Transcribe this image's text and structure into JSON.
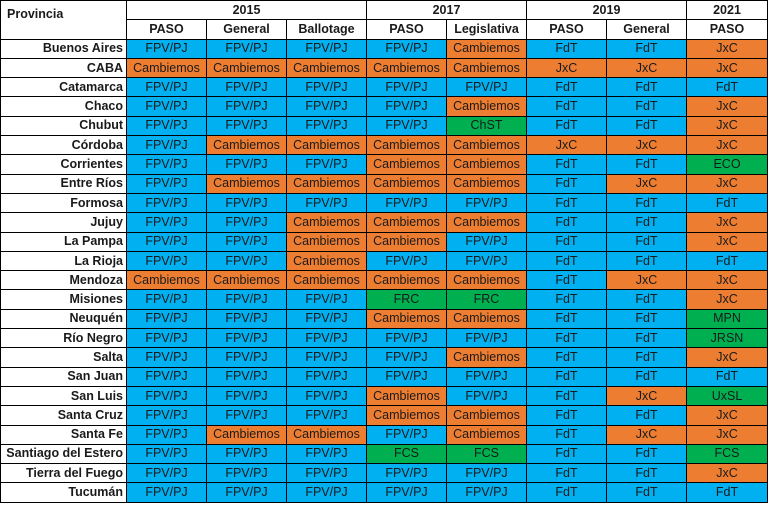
{
  "header": {
    "provincia": "Provincia",
    "years": [
      {
        "label": "2015",
        "span": 3
      },
      {
        "label": "2017",
        "span": 2
      },
      {
        "label": "2019",
        "span": 2
      },
      {
        "label": "2021",
        "span": 1
      }
    ],
    "elections": [
      "PASO",
      "General",
      "Ballotage",
      "PASO",
      "Legislativa",
      "PASO",
      "General",
      "PASO"
    ]
  },
  "colors": {
    "FPV/PJ": "#00b0f0",
    "FdT": "#00b0f0",
    "Cambiemos": "#ed7d31",
    "JxC": "#ed7d31",
    "other": "#00b050"
  },
  "rows": [
    {
      "provincia": "Buenos Aires",
      "results": [
        "FPV/PJ",
        "FPV/PJ",
        "FPV/PJ",
        "FPV/PJ",
        "Cambiemos",
        "FdT",
        "FdT",
        "JxC"
      ]
    },
    {
      "provincia": "CABA",
      "results": [
        "Cambiemos",
        "Cambiemos",
        "Cambiemos",
        "Cambiemos",
        "Cambiemos",
        "JxC",
        "JxC",
        "JxC"
      ]
    },
    {
      "provincia": "Catamarca",
      "results": [
        "FPV/PJ",
        "FPV/PJ",
        "FPV/PJ",
        "FPV/PJ",
        "FPV/PJ",
        "FdT",
        "FdT",
        "FdT"
      ]
    },
    {
      "provincia": "Chaco",
      "results": [
        "FPV/PJ",
        "FPV/PJ",
        "FPV/PJ",
        "FPV/PJ",
        "Cambiemos",
        "FdT",
        "FdT",
        "JxC"
      ]
    },
    {
      "provincia": "Chubut",
      "results": [
        "FPV/PJ",
        "FPV/PJ",
        "FPV/PJ",
        "FPV/PJ",
        "ChST",
        "FdT",
        "FdT",
        "JxC"
      ]
    },
    {
      "provincia": "Córdoba",
      "results": [
        "FPV/PJ",
        "Cambiemos",
        "Cambiemos",
        "Cambiemos",
        "Cambiemos",
        "JxC",
        "JxC",
        "JxC"
      ]
    },
    {
      "provincia": "Corrientes",
      "results": [
        "FPV/PJ",
        "FPV/PJ",
        "FPV/PJ",
        "Cambiemos",
        "Cambiemos",
        "FdT",
        "FdT",
        "ECO"
      ]
    },
    {
      "provincia": "Entre Ríos",
      "results": [
        "FPV/PJ",
        "Cambiemos",
        "Cambiemos",
        "Cambiemos",
        "Cambiemos",
        "FdT",
        "JxC",
        "JxC"
      ]
    },
    {
      "provincia": "Formosa",
      "results": [
        "FPV/PJ",
        "FPV/PJ",
        "FPV/PJ",
        "FPV/PJ",
        "FPV/PJ",
        "FdT",
        "FdT",
        "FdT"
      ]
    },
    {
      "provincia": "Jujuy",
      "results": [
        "FPV/PJ",
        "FPV/PJ",
        "Cambiemos",
        "Cambiemos",
        "Cambiemos",
        "FdT",
        "FdT",
        "JxC"
      ]
    },
    {
      "provincia": "La Pampa",
      "results": [
        "FPV/PJ",
        "FPV/PJ",
        "Cambiemos",
        "Cambiemos",
        "FPV/PJ",
        "FdT",
        "FdT",
        "JxC"
      ]
    },
    {
      "provincia": "La Rioja",
      "results": [
        "FPV/PJ",
        "FPV/PJ",
        "Cambiemos",
        "FPV/PJ",
        "FPV/PJ",
        "FdT",
        "FdT",
        "FdT"
      ]
    },
    {
      "provincia": "Mendoza",
      "results": [
        "Cambiemos",
        "Cambiemos",
        "Cambiemos",
        "Cambiemos",
        "Cambiemos",
        "FdT",
        "JxC",
        "JxC"
      ]
    },
    {
      "provincia": "Misiones",
      "results": [
        "FPV/PJ",
        "FPV/PJ",
        "FPV/PJ",
        "FRC",
        "FRC",
        "FdT",
        "FdT",
        "JxC"
      ]
    },
    {
      "provincia": "Neuquén",
      "results": [
        "FPV/PJ",
        "FPV/PJ",
        "FPV/PJ",
        "Cambiemos",
        "Cambiemos",
        "FdT",
        "FdT",
        "MPN"
      ]
    },
    {
      "provincia": "Río Negro",
      "results": [
        "FPV/PJ",
        "FPV/PJ",
        "FPV/PJ",
        "FPV/PJ",
        "FPV/PJ",
        "FdT",
        "FdT",
        "JRSN"
      ]
    },
    {
      "provincia": "Salta",
      "results": [
        "FPV/PJ",
        "FPV/PJ",
        "FPV/PJ",
        "FPV/PJ",
        "Cambiemos",
        "FdT",
        "FdT",
        "JxC"
      ]
    },
    {
      "provincia": "San Juan",
      "results": [
        "FPV/PJ",
        "FPV/PJ",
        "FPV/PJ",
        "FPV/PJ",
        "FPV/PJ",
        "FdT",
        "FdT",
        "FdT"
      ]
    },
    {
      "provincia": "San Luis",
      "results": [
        "FPV/PJ",
        "FPV/PJ",
        "FPV/PJ",
        "Cambiemos",
        "FPV/PJ",
        "FdT",
        "JxC",
        "UxSL"
      ]
    },
    {
      "provincia": "Santa Cruz",
      "results": [
        "FPV/PJ",
        "FPV/PJ",
        "FPV/PJ",
        "Cambiemos",
        "Cambiemos",
        "FdT",
        "FdT",
        "JxC"
      ]
    },
    {
      "provincia": "Santa Fe",
      "results": [
        "FPV/PJ",
        "Cambiemos",
        "Cambiemos",
        "FPV/PJ",
        "Cambiemos",
        "FdT",
        "JxC",
        "JxC"
      ]
    },
    {
      "provincia": "Santiago del Estero",
      "results": [
        "FPV/PJ",
        "FPV/PJ",
        "FPV/PJ",
        "FCS",
        "FCS",
        "FdT",
        "FdT",
        "FCS"
      ]
    },
    {
      "provincia": "Tierra del Fuego",
      "results": [
        "FPV/PJ",
        "FPV/PJ",
        "FPV/PJ",
        "FPV/PJ",
        "FPV/PJ",
        "FdT",
        "FdT",
        "JxC"
      ]
    },
    {
      "provincia": "Tucumán",
      "results": [
        "FPV/PJ",
        "FPV/PJ",
        "FPV/PJ",
        "FPV/PJ",
        "FPV/PJ",
        "FdT",
        "FdT",
        "FdT"
      ]
    }
  ]
}
